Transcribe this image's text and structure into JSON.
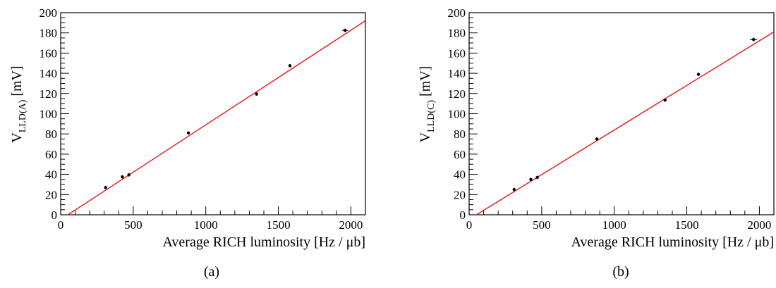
{
  "chart_data": [
    {
      "type": "scatter",
      "caption": "(a)",
      "xlabel": "Average RICH luminosity [Hz / μb]",
      "ylabel_main": "V",
      "ylabel_sub": "LLD(A)",
      "ylabel_unit": "[mV]",
      "xlim": [
        0,
        2100
      ],
      "ylim": [
        0,
        200
      ],
      "xticks": [
        0,
        500,
        1000,
        1500,
        2000
      ],
      "yticks": [
        0,
        20,
        40,
        60,
        80,
        100,
        120,
        140,
        160,
        180,
        200
      ],
      "points": [
        {
          "x": 310,
          "y": 27,
          "xerr": 0
        },
        {
          "x": 425,
          "y": 37.5,
          "xerr": 0
        },
        {
          "x": 470,
          "y": 39.5,
          "xerr": 0
        },
        {
          "x": 880,
          "y": 81,
          "xerr": 0
        },
        {
          "x": 1350,
          "y": 119.5,
          "xerr": 0
        },
        {
          "x": 1580,
          "y": 147.5,
          "xerr": 0
        },
        {
          "x": 1960,
          "y": 182.5,
          "xerr": 20
        }
      ],
      "fit_line": {
        "x": [
          50,
          2100
        ],
        "y": [
          0,
          192
        ],
        "color": "#e8151a"
      },
      "marker_color": "#000000"
    },
    {
      "type": "scatter",
      "caption": "(b)",
      "xlabel": "Average RICH luminosity [Hz / μb]",
      "ylabel_main": "V",
      "ylabel_sub": "LLD(C)",
      "ylabel_unit": "[mV]",
      "xlim": [
        0,
        2100
      ],
      "ylim": [
        0,
        200
      ],
      "xticks": [
        0,
        500,
        1000,
        1500,
        2000
      ],
      "yticks": [
        0,
        20,
        40,
        60,
        80,
        100,
        120,
        140,
        160,
        180,
        200
      ],
      "points": [
        {
          "x": 310,
          "y": 25,
          "xerr": 0
        },
        {
          "x": 425,
          "y": 35,
          "xerr": 0
        },
        {
          "x": 470,
          "y": 37,
          "xerr": 0
        },
        {
          "x": 880,
          "y": 75,
          "xerr": 0
        },
        {
          "x": 1350,
          "y": 113.5,
          "xerr": 0
        },
        {
          "x": 1580,
          "y": 139,
          "xerr": 0
        },
        {
          "x": 1960,
          "y": 173.5,
          "xerr": 25
        }
      ],
      "fit_line": {
        "x": [
          50,
          2100
        ],
        "y": [
          0,
          181
        ],
        "color": "#e8151a"
      },
      "marker_color": "#000000"
    }
  ]
}
